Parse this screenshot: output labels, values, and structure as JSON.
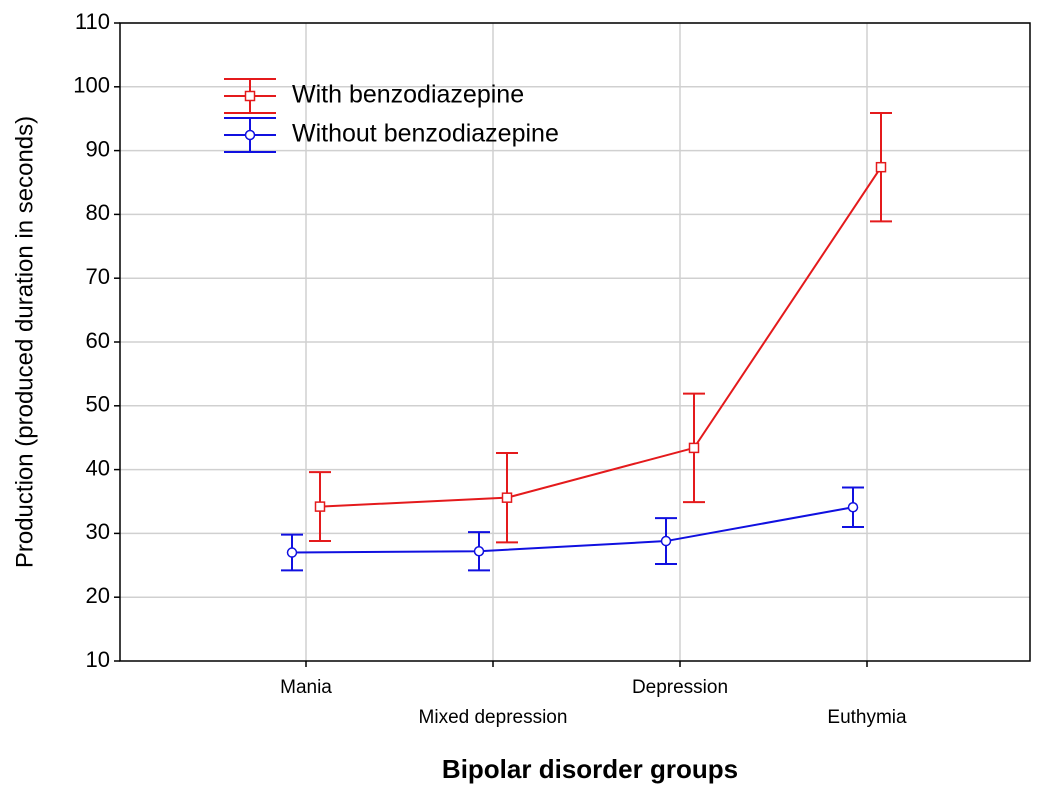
{
  "chart_data": {
    "type": "line",
    "xlabel": "Bipolar disorder groups",
    "ylabel": "Production (produced duration in seconds)",
    "categories": [
      "Mania",
      "Mixed depression",
      "Depression",
      "Euthymia"
    ],
    "series": [
      {
        "name": "With benzodiazepine",
        "color": "#e41a1c",
        "marker": "square",
        "values": [
          34.2,
          35.6,
          43.4,
          87.4
        ],
        "errors": [
          5.4,
          7,
          8.5,
          8.5
        ]
      },
      {
        "name": "Without benzodiazepine",
        "color": "#1010e0",
        "marker": "circle",
        "values": [
          27,
          27.2,
          28.8,
          34.1
        ],
        "errors": [
          2.8,
          3,
          3.6,
          3.1
        ]
      }
    ],
    "ylim": [
      10,
      110
    ],
    "yticks": [
      10,
      20,
      30,
      40,
      50,
      60,
      70,
      80,
      90,
      100,
      110
    ],
    "grid": true,
    "legend": "upper left"
  }
}
